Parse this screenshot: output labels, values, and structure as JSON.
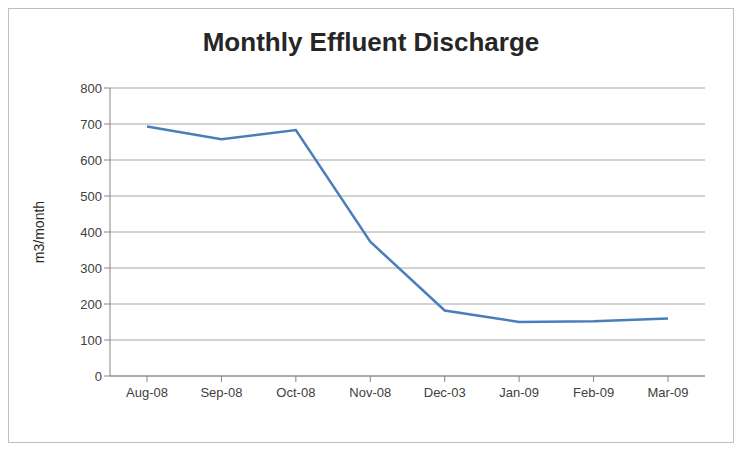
{
  "chart_data": {
    "type": "line",
    "title": "Monthly Effluent Discharge",
    "y_label": "m3/month",
    "categories": [
      "Aug-08",
      "Sep-08",
      "Oct-08",
      "Nov-08",
      "Dec-03",
      "Jan-09",
      "Feb-09",
      "Mar-09"
    ],
    "values": [
      693,
      658,
      683,
      373,
      182,
      150,
      152,
      160
    ],
    "color": "#4a7ebb",
    "ylim": [
      0,
      800
    ],
    "yticks": [
      0,
      100,
      200,
      300,
      400,
      500,
      600,
      700,
      800
    ],
    "grid": true,
    "marker": "none"
  }
}
